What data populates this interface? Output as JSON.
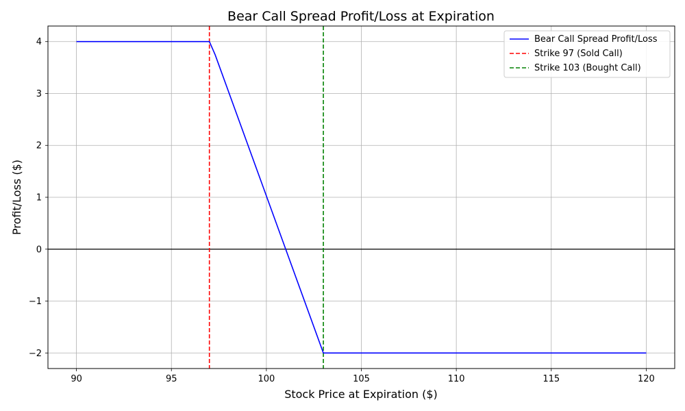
{
  "chart_data": {
    "type": "line",
    "title": "Bear Call Spread Profit/Loss at Expiration",
    "xlabel": "Stock Price at Expiration ($)",
    "ylabel": "Profit/Loss ($)",
    "xlim": [
      88.5,
      121.5
    ],
    "ylim": [
      -2.3,
      4.3
    ],
    "xticks": [
      90,
      95,
      100,
      105,
      110,
      115,
      120
    ],
    "xtick_labels": [
      "90",
      "95",
      "100",
      "105",
      "110",
      "115",
      "120"
    ],
    "yticks": [
      4,
      3,
      2,
      1,
      0,
      -1,
      -2
    ],
    "ytick_labels": [
      "4",
      "3",
      "2",
      "1",
      "0",
      "−1",
      "−2"
    ],
    "grid": true,
    "legend_position": "top-right",
    "series": [
      {
        "name": "Bear Call Spread Profit/Loss",
        "color": "#0000ff",
        "style": "solid",
        "x": [
          90,
          97,
          97.3,
          103,
          120
        ],
        "y": [
          4,
          4,
          3.75,
          -2,
          -2
        ]
      }
    ],
    "reference_lines": [
      {
        "name": "Strike 97 (Sold Call)",
        "x": 97,
        "color": "#ff0000",
        "style": "dashed"
      },
      {
        "name": "Strike 103 (Bought Call)",
        "x": 103,
        "color": "#008000",
        "style": "dashed"
      }
    ],
    "zero_line": {
      "y": 0,
      "color": "#000000"
    }
  }
}
